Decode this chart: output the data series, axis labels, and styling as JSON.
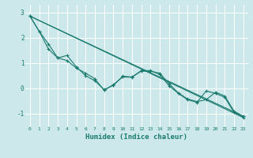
{
  "xlabel": "Humidex (Indice chaleur)",
  "bg_color": "#cce8eb",
  "line_color": "#1a7a6e",
  "grid_color": "#ffffff",
  "xlim": [
    -0.5,
    23.5
  ],
  "ylim": [
    -1.5,
    3.3
  ],
  "xticks": [
    0,
    1,
    2,
    3,
    4,
    5,
    6,
    7,
    8,
    9,
    10,
    11,
    12,
    13,
    14,
    15,
    16,
    17,
    18,
    19,
    20,
    21,
    22,
    23
  ],
  "yticks": [
    -1,
    0,
    1,
    2,
    3
  ],
  "lines": [
    {
      "x": [
        0,
        1,
        2,
        3,
        4,
        5,
        6,
        7,
        8,
        9,
        10,
        11,
        12,
        13,
        14,
        15,
        16,
        17,
        18,
        19,
        20,
        21,
        22,
        23
      ],
      "y": [
        2.85,
        2.25,
        1.55,
        1.2,
        1.3,
        0.85,
        0.5,
        0.3,
        -0.05,
        0.12,
        0.48,
        0.45,
        0.68,
        0.68,
        0.6,
        0.18,
        -0.18,
        -0.42,
        -0.52,
        -0.45,
        -0.15,
        -0.3,
        -0.9,
        -1.1
      ],
      "has_markers": true
    },
    {
      "x": [
        0,
        1,
        2,
        3,
        4,
        5,
        6,
        7,
        8,
        9,
        10,
        11,
        12,
        13,
        14,
        15,
        16,
        17,
        18,
        19,
        20,
        21,
        22,
        23
      ],
      "y": [
        2.85,
        2.25,
        1.75,
        1.2,
        1.1,
        0.8,
        0.6,
        0.38,
        -0.08,
        0.15,
        0.45,
        0.44,
        0.7,
        0.7,
        0.55,
        0.1,
        -0.2,
        -0.45,
        -0.55,
        -0.1,
        -0.2,
        -0.35,
        -0.95,
        -1.15
      ],
      "has_markers": true
    },
    {
      "x": [
        0,
        23
      ],
      "y": [
        2.85,
        -1.15
      ],
      "has_markers": false
    },
    {
      "x": [
        0,
        23
      ],
      "y": [
        2.85,
        -1.1
      ],
      "has_markers": false
    }
  ]
}
